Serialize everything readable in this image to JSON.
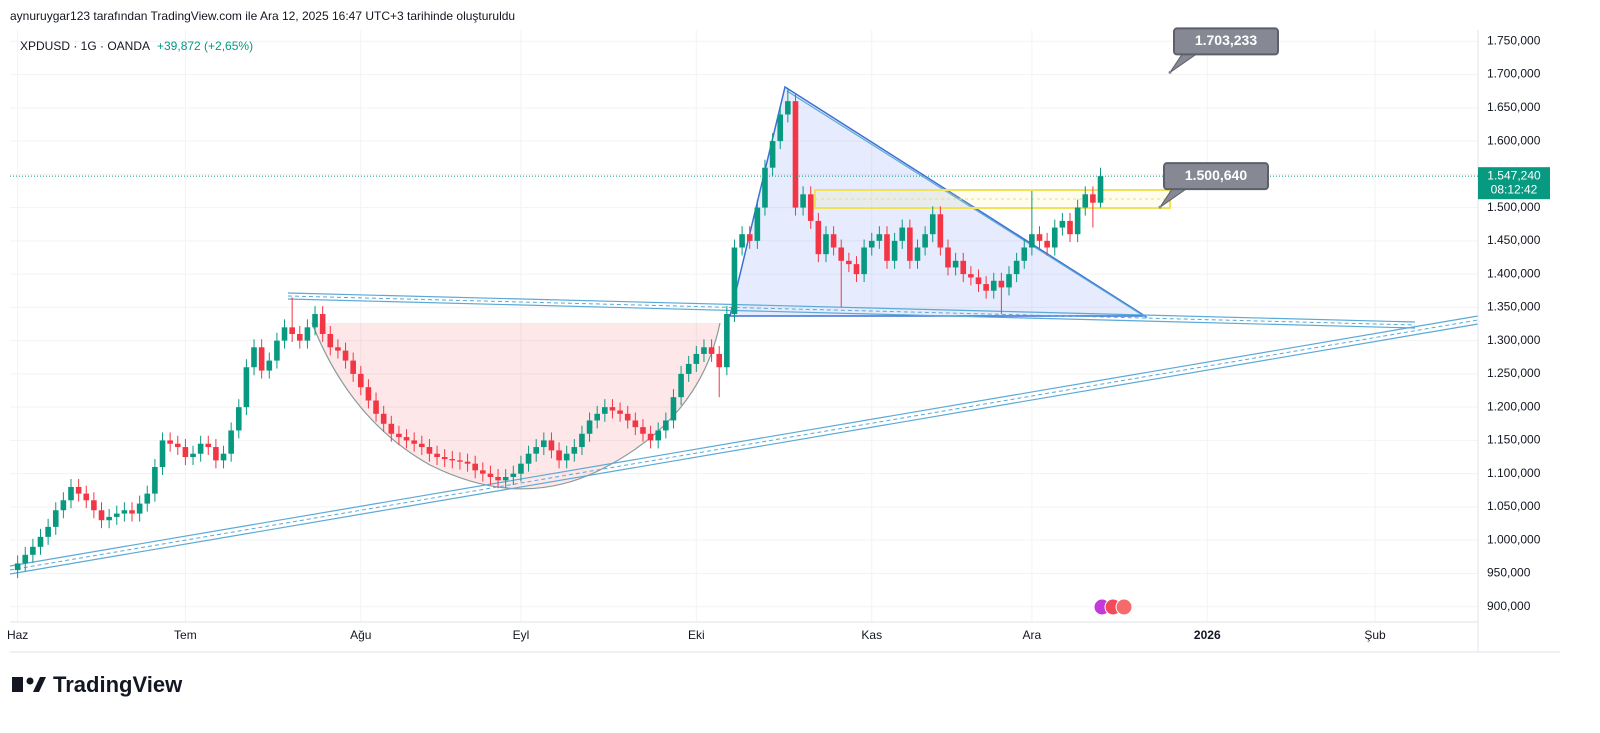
{
  "chart_data": {
    "type": "candlestick",
    "subtitle": "aynuruygar123 tarafından TradingView.com ile Ara 12, 2025 16:47 UTC+3 tarihinde oluşturuldu",
    "title": "XPDUSD · 1G · OANDA",
    "change": "+39,872 (+2,65%)",
    "brand": "TradingView",
    "up_color": "#089981",
    "down_color": "#f23645",
    "grid": true,
    "xlim": [
      -1,
      191.5
    ],
    "ylim": [
      880,
      1767
    ],
    "xticks": [
      {
        "value": 0,
        "label": "Haz"
      },
      {
        "value": 22,
        "label": "Tem"
      },
      {
        "value": 45,
        "label": "Ağu"
      },
      {
        "value": 66,
        "label": "Eyl"
      },
      {
        "value": 89,
        "label": "Eki"
      },
      {
        "value": 112,
        "label": "Kas"
      },
      {
        "value": 133,
        "label": "Ara"
      },
      {
        "value": 156,
        "label": "2026"
      },
      {
        "value": 178,
        "label": "Şub"
      }
    ],
    "yticks": [
      {
        "value": 900,
        "label": "900,000"
      },
      {
        "value": 950,
        "label": "950,000"
      },
      {
        "value": 1000,
        "label": "1.000,000"
      },
      {
        "value": 1050,
        "label": "1.050,000"
      },
      {
        "value": 1100,
        "label": "1.100,000"
      },
      {
        "value": 1150,
        "label": "1.150,000"
      },
      {
        "value": 1200,
        "label": "1.200,000"
      },
      {
        "value": 1250,
        "label": "1.250,000"
      },
      {
        "value": 1300,
        "label": "1.300,000"
      },
      {
        "value": 1350,
        "label": "1.350,000"
      },
      {
        "value": 1400,
        "label": "1.400,000"
      },
      {
        "value": 1450,
        "label": "1.450,000"
      },
      {
        "value": 1500,
        "label": "1.500,000"
      },
      {
        "value": 1550,
        "label": "1.550,000"
      },
      {
        "value": 1600,
        "label": "1.600,000"
      },
      {
        "value": 1650,
        "label": "1.650,000"
      },
      {
        "value": 1700,
        "label": "1.700,000"
      },
      {
        "value": 1750,
        "label": "1.750,000"
      }
    ],
    "last_price": {
      "value": 1547.24,
      "label": "1.547,240",
      "countdown": "08:12:42"
    },
    "annotations": [
      {
        "value": 1703.233,
        "label": "1.703,233"
      },
      {
        "value": 1500.64,
        "label": "1.500,640"
      }
    ],
    "ohlc": [
      [
        955,
        977,
        943,
        965
      ],
      [
        965,
        990,
        953,
        978
      ],
      [
        978,
        1002,
        966,
        990
      ],
      [
        990,
        1017,
        978,
        1005
      ],
      [
        1005,
        1032,
        993,
        1020
      ],
      [
        1020,
        1057,
        1008,
        1045
      ],
      [
        1045,
        1072,
        1033,
        1060
      ],
      [
        1060,
        1092,
        1048,
        1080
      ],
      [
        1080,
        1092,
        1058,
        1070
      ],
      [
        1070,
        1082,
        1048,
        1060
      ],
      [
        1060,
        1072,
        1033,
        1045
      ],
      [
        1045,
        1057,
        1018,
        1030
      ],
      [
        1030,
        1047,
        1018,
        1035
      ],
      [
        1035,
        1052,
        1023,
        1040
      ],
      [
        1040,
        1057,
        1028,
        1045
      ],
      [
        1045,
        1057,
        1028,
        1040
      ],
      [
        1040,
        1067,
        1028,
        1055
      ],
      [
        1055,
        1082,
        1043,
        1070
      ],
      [
        1070,
        1122,
        1058,
        1110
      ],
      [
        1110,
        1162,
        1098,
        1150
      ],
      [
        1150,
        1162,
        1133,
        1145
      ],
      [
        1145,
        1157,
        1128,
        1140
      ],
      [
        1140,
        1152,
        1113,
        1125
      ],
      [
        1125,
        1142,
        1113,
        1130
      ],
      [
        1130,
        1157,
        1118,
        1145
      ],
      [
        1145,
        1157,
        1128,
        1140
      ],
      [
        1140,
        1152,
        1108,
        1120
      ],
      [
        1120,
        1142,
        1108,
        1130
      ],
      [
        1130,
        1177,
        1118,
        1165
      ],
      [
        1165,
        1212,
        1153,
        1200
      ],
      [
        1200,
        1272,
        1188,
        1260
      ],
      [
        1260,
        1302,
        1248,
        1290
      ],
      [
        1290,
        1302,
        1243,
        1255
      ],
      [
        1255,
        1282,
        1243,
        1270
      ],
      [
        1270,
        1312,
        1258,
        1300
      ],
      [
        1300,
        1332,
        1288,
        1320
      ],
      [
        1320,
        1365,
        1298,
        1310
      ],
      [
        1310,
        1322,
        1288,
        1300
      ],
      [
        1300,
        1332,
        1288,
        1320
      ],
      [
        1320,
        1352,
        1308,
        1340
      ],
      [
        1340,
        1352,
        1298,
        1310
      ],
      [
        1310,
        1322,
        1278,
        1290
      ],
      [
        1290,
        1302,
        1273,
        1285
      ],
      [
        1285,
        1297,
        1258,
        1270
      ],
      [
        1270,
        1282,
        1238,
        1250
      ],
      [
        1250,
        1262,
        1218,
        1230
      ],
      [
        1230,
        1242,
        1198,
        1210
      ],
      [
        1210,
        1222,
        1178,
        1190
      ],
      [
        1190,
        1202,
        1163,
        1175
      ],
      [
        1175,
        1187,
        1148,
        1160
      ],
      [
        1160,
        1172,
        1143,
        1155
      ],
      [
        1155,
        1167,
        1138,
        1150
      ],
      [
        1150,
        1162,
        1133,
        1145
      ],
      [
        1145,
        1157,
        1128,
        1140
      ],
      [
        1140,
        1152,
        1118,
        1130
      ],
      [
        1130,
        1142,
        1113,
        1125
      ],
      [
        1125,
        1137,
        1110,
        1122
      ],
      [
        1122,
        1134,
        1108,
        1120
      ],
      [
        1120,
        1132,
        1106,
        1118
      ],
      [
        1118,
        1130,
        1103,
        1115
      ],
      [
        1115,
        1127,
        1093,
        1105
      ],
      [
        1105,
        1117,
        1088,
        1100
      ],
      [
        1100,
        1112,
        1083,
        1095
      ],
      [
        1095,
        1107,
        1078,
        1090
      ],
      [
        1090,
        1107,
        1078,
        1095
      ],
      [
        1095,
        1112,
        1083,
        1100
      ],
      [
        1100,
        1127,
        1088,
        1115
      ],
      [
        1115,
        1142,
        1103,
        1130
      ],
      [
        1130,
        1152,
        1118,
        1140
      ],
      [
        1140,
        1162,
        1128,
        1150
      ],
      [
        1150,
        1162,
        1123,
        1135
      ],
      [
        1135,
        1147,
        1108,
        1120
      ],
      [
        1120,
        1142,
        1108,
        1130
      ],
      [
        1130,
        1152,
        1118,
        1140
      ],
      [
        1140,
        1172,
        1128,
        1160
      ],
      [
        1160,
        1192,
        1148,
        1180
      ],
      [
        1180,
        1202,
        1168,
        1190
      ],
      [
        1190,
        1212,
        1178,
        1200
      ],
      [
        1200,
        1212,
        1183,
        1195
      ],
      [
        1195,
        1207,
        1178,
        1190
      ],
      [
        1190,
        1202,
        1168,
        1180
      ],
      [
        1180,
        1192,
        1158,
        1170
      ],
      [
        1170,
        1182,
        1148,
        1160
      ],
      [
        1160,
        1172,
        1138,
        1150
      ],
      [
        1150,
        1177,
        1138,
        1165
      ],
      [
        1165,
        1192,
        1153,
        1180
      ],
      [
        1180,
        1227,
        1168,
        1215
      ],
      [
        1215,
        1262,
        1203,
        1250
      ],
      [
        1250,
        1277,
        1238,
        1265
      ],
      [
        1265,
        1292,
        1253,
        1280
      ],
      [
        1280,
        1302,
        1268,
        1290
      ],
      [
        1290,
        1302,
        1268,
        1280
      ],
      [
        1280,
        1292,
        1215,
        1260
      ],
      [
        1260,
        1352,
        1248,
        1340
      ],
      [
        1340,
        1452,
        1328,
        1440
      ],
      [
        1440,
        1472,
        1428,
        1460
      ],
      [
        1460,
        1472,
        1438,
        1450
      ],
      [
        1450,
        1512,
        1438,
        1500
      ],
      [
        1500,
        1572,
        1488,
        1560
      ],
      [
        1560,
        1612,
        1548,
        1600
      ],
      [
        1600,
        1652,
        1588,
        1640
      ],
      [
        1640,
        1680,
        1628,
        1660
      ],
      [
        1660,
        1672,
        1488,
        1500
      ],
      [
        1500,
        1532,
        1488,
        1520
      ],
      [
        1520,
        1532,
        1468,
        1480
      ],
      [
        1480,
        1492,
        1418,
        1430
      ],
      [
        1430,
        1472,
        1418,
        1460
      ],
      [
        1460,
        1472,
        1428,
        1440
      ],
      [
        1440,
        1452,
        1350,
        1420
      ],
      [
        1420,
        1432,
        1403,
        1415
      ],
      [
        1415,
        1427,
        1388,
        1400
      ],
      [
        1400,
        1452,
        1388,
        1440
      ],
      [
        1440,
        1462,
        1428,
        1450
      ],
      [
        1450,
        1472,
        1438,
        1460
      ],
      [
        1460,
        1472,
        1408,
        1420
      ],
      [
        1420,
        1462,
        1408,
        1450
      ],
      [
        1450,
        1482,
        1438,
        1470
      ],
      [
        1470,
        1482,
        1408,
        1420
      ],
      [
        1420,
        1452,
        1408,
        1440
      ],
      [
        1440,
        1472,
        1428,
        1460
      ],
      [
        1460,
        1502,
        1448,
        1490
      ],
      [
        1490,
        1502,
        1428,
        1440
      ],
      [
        1440,
        1452,
        1398,
        1410
      ],
      [
        1410,
        1432,
        1398,
        1420
      ],
      [
        1420,
        1432,
        1388,
        1400
      ],
      [
        1400,
        1412,
        1383,
        1395
      ],
      [
        1395,
        1407,
        1373,
        1385
      ],
      [
        1385,
        1397,
        1363,
        1375
      ],
      [
        1375,
        1402,
        1363,
        1390
      ],
      [
        1390,
        1402,
        1340,
        1380
      ],
      [
        1380,
        1412,
        1368,
        1400
      ],
      [
        1400,
        1432,
        1388,
        1420
      ],
      [
        1420,
        1452,
        1408,
        1440
      ],
      [
        1440,
        1525,
        1428,
        1460
      ],
      [
        1460,
        1472,
        1438,
        1450
      ],
      [
        1450,
        1462,
        1428,
        1440
      ],
      [
        1440,
        1482,
        1428,
        1470
      ],
      [
        1470,
        1492,
        1458,
        1480
      ],
      [
        1480,
        1492,
        1448,
        1460
      ],
      [
        1460,
        1512,
        1448,
        1500
      ],
      [
        1500,
        1532,
        1488,
        1520
      ],
      [
        1520,
        1532,
        1470,
        1507.37
      ],
      [
        1507.37,
        1560,
        1500,
        1547.24
      ]
    ]
  }
}
